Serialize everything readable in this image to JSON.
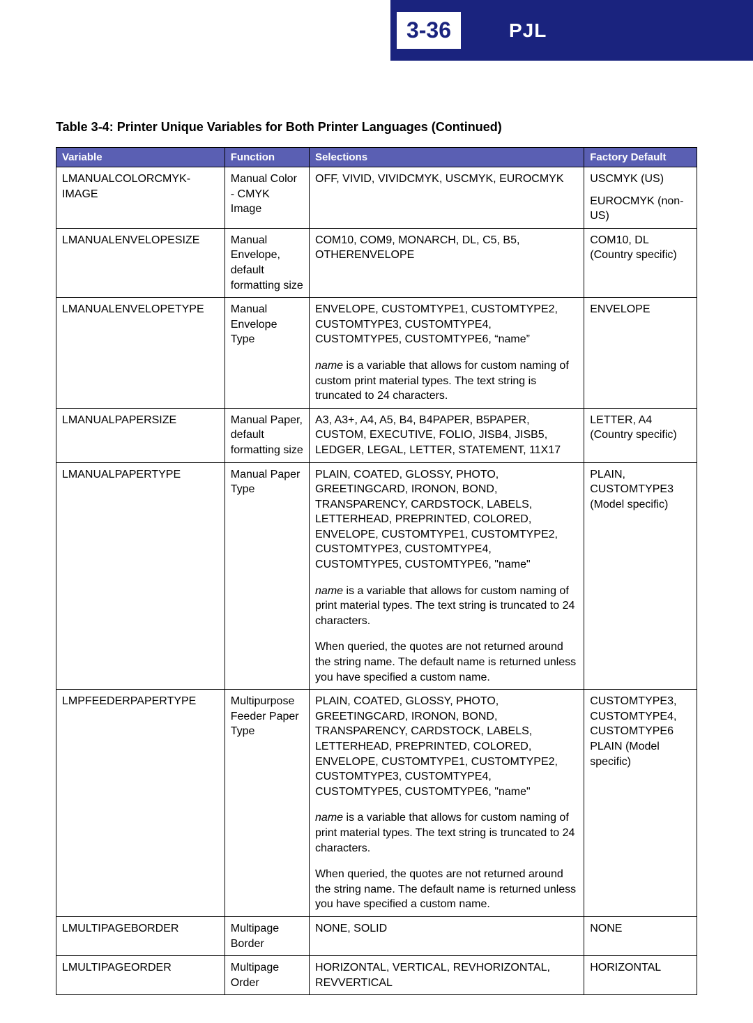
{
  "header": {
    "page_number": "3-36",
    "section": "PJL",
    "colors": {
      "bar_bg": "#1a237e",
      "bar_fg": "#ffffff",
      "box_bg": "#ffffff",
      "box_fg": "#1a237e"
    }
  },
  "table": {
    "caption": "Table 3-4:  Printer Unique Variables for Both Printer Languages (Continued)",
    "columns": {
      "variable": "Variable",
      "function": "Function",
      "selections": "Selections",
      "default": "Factory Default"
    },
    "header_bg": "#5a5fb3",
    "header_fg": "#ffffff",
    "border_color": "#000000",
    "rows": [
      {
        "variable": "LMANUALCOLORCMYK-IMAGE",
        "function": "Manual Color - CMYK Image",
        "sel": [
          "OFF, VIVID, VIVIDCMYK, USCMYK, EUROCMYK"
        ],
        "def": [
          "USCMYK (US)",
          "EUROCMYK (non-US)"
        ]
      },
      {
        "variable": "LMANUALENVELOPESIZE",
        "function": "Manual Envelope, default formatting size",
        "sel": [
          "COM10, COM9, MONARCH, DL, C5, B5, OTHERENVELOPE"
        ],
        "def": [
          "COM10, DL (Country specific)"
        ]
      },
      {
        "variable": "LMANUALENVELOPETYPE",
        "function": "Manual Envelope Type",
        "sel": [
          "ENVELOPE, CUSTOMTYPE1, CUSTOMTYPE2, CUSTOMTYPE3, CUSTOMTYPE4, CUSTOMTYPE5, CUSTOMTYPE6, “name”",
          {
            "italic_lead": "name",
            "rest": " is a variable that allows for custom naming of custom print material types. The text string is truncated to 24 characters."
          }
        ],
        "def": [
          "ENVELOPE"
        ]
      },
      {
        "variable": "LMANUALPAPERSIZE",
        "function": "Manual Paper, default formatting size",
        "sel": [
          "A3, A3+, A4, A5, B4, B4PAPER, B5PAPER, CUSTOM, EXECUTIVE, FOLIO, JISB4, JISB5, LEDGER, LEGAL, LETTER, STATEMENT, 11X17"
        ],
        "def": [
          "LETTER, A4 (Country specific)"
        ]
      },
      {
        "variable": "LMANUALPAPERTYPE",
        "function": "Manual Paper Type",
        "sel": [
          "PLAIN, COATED, GLOSSY, PHOTO, GREETINGCARD, IRONON, BOND, TRANSPARENCY, CARDSTOCK, LABELS, LETTERHEAD, PREPRINTED, COLORED, ENVELOPE, CUSTOMTYPE1, CUSTOMTYPE2, CUSTOMTYPE3, CUSTOMTYPE4, CUSTOMTYPE5, CUSTOMTYPE6, \"name\"",
          {
            "italic_lead": "name",
            "rest": " is a variable that allows for custom naming of print material types. The text string is truncated to 24 characters."
          },
          "When queried, the quotes are not returned around the string name. The default name is returned unless you have specified a custom name."
        ],
        "def": [
          "PLAIN, CUSTOMTYPE3 (Model specific)"
        ]
      },
      {
        "variable": "LMPFEEDERPAPERTYPE",
        "function": "Multipurpose Feeder Paper Type",
        "sel": [
          "PLAIN, COATED, GLOSSY, PHOTO, GREETINGCARD, IRONON, BOND, TRANSPARENCY, CARDSTOCK, LABELS, LETTERHEAD, PREPRINTED, COLORED, ENVELOPE, CUSTOMTYPE1, CUSTOMTYPE2, CUSTOMTYPE3, CUSTOMTYPE4, CUSTOMTYPE5, CUSTOMTYPE6, \"name\"",
          {
            "italic_lead": "name",
            "rest": " is a variable that allows for custom naming of print material types. The text string is truncated to 24 characters."
          },
          "When queried, the quotes are not returned around the string name. The default name is returned unless you have specified a custom name."
        ],
        "def": [
          "CUSTOMTYPE3, CUSTOMTYPE4, CUSTOMTYPE6 PLAIN (Model specific)"
        ]
      },
      {
        "variable": "LMULTIPAGEBORDER",
        "function": "Multipage Border",
        "sel": [
          "NONE, SOLID"
        ],
        "def": [
          "NONE"
        ]
      },
      {
        "variable": "LMULTIPAGEORDER",
        "function": "Multipage Order",
        "sel": [
          "HORIZONTAL, VERTICAL, REVHORIZONTAL, REVVERTICAL"
        ],
        "def": [
          "HORIZONTAL"
        ]
      }
    ]
  }
}
